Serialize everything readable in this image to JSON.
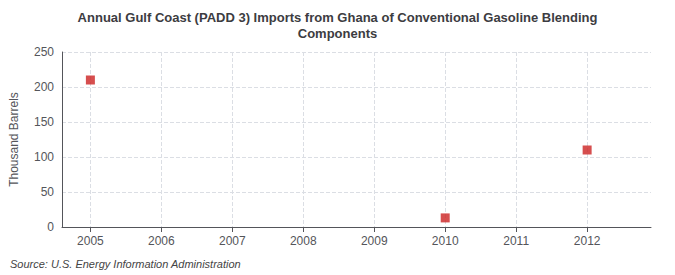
{
  "chart_data": {
    "type": "scatter",
    "title": "Annual Gulf Coast (PADD 3) Imports from Ghana of Conventional Gasoline Blending\nComponents",
    "ylabel": "Thousand Barrels",
    "annotations": [
      "Source: U.S. Energy Information Administration"
    ],
    "x": [
      2005,
      2010,
      2012
    ],
    "values": [
      210,
      13,
      110
    ],
    "color": "#cc2222",
    "marker": "square",
    "xlim": [
      2004.6,
      2012.9
    ],
    "xticks": [
      2005,
      2006,
      2007,
      2008,
      2009,
      2010,
      2011,
      2012
    ],
    "ylim": [
      0,
      250
    ],
    "yticks": [
      0,
      50,
      100,
      150,
      200,
      250
    ],
    "grid": true
  }
}
